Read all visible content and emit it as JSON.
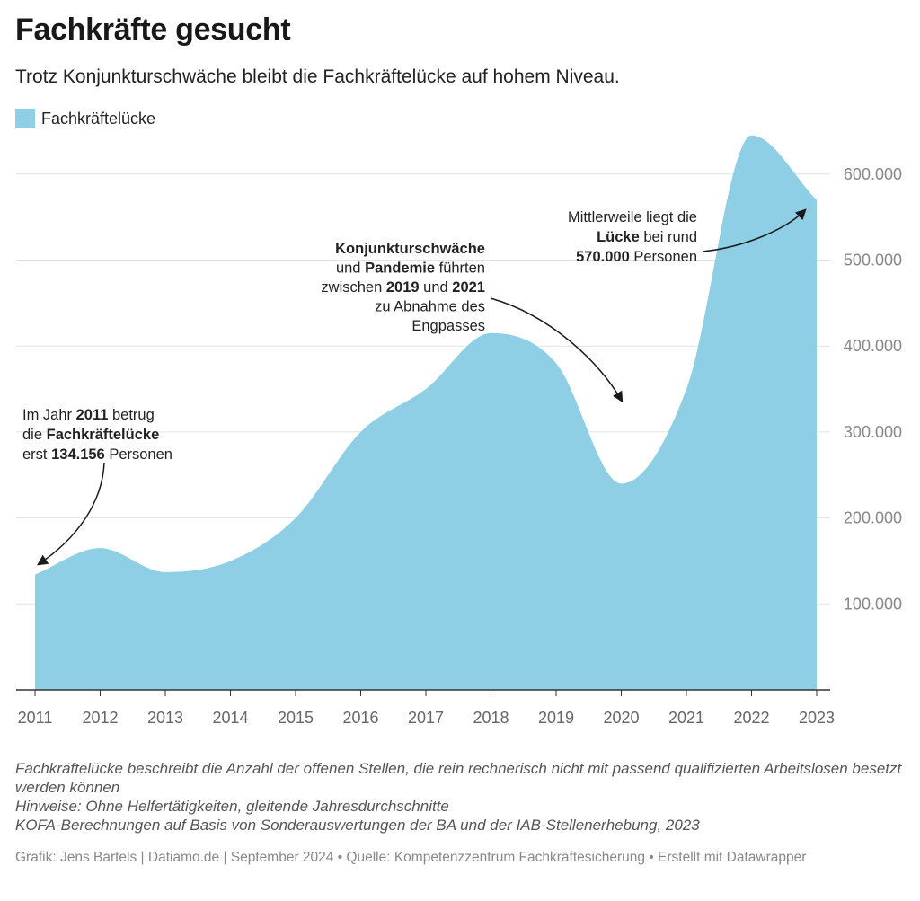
{
  "header": {
    "title": "Fachkräfte gesucht",
    "subtitle": "Trotz Konjunkturschwäche bleibt die Fachkräftelücke auf hohem Niveau."
  },
  "legend": {
    "label": "Fachkräftelücke",
    "color": "#8ecfe6"
  },
  "chart_data": {
    "type": "area",
    "title": "Fachkräfte gesucht",
    "subtitle": "Trotz Konjunkturschwäche bleibt die Fachkräftelücke auf hohem Niveau.",
    "x": [
      2011,
      2012,
      2013,
      2014,
      2015,
      2016,
      2017,
      2018,
      2019,
      2020,
      2021,
      2022,
      2023
    ],
    "series": [
      {
        "name": "Fachkräftelücke",
        "color": "#8ecfe6",
        "values": [
          134156,
          165000,
          137000,
          150000,
          200000,
          300000,
          350000,
          415000,
          380000,
          240000,
          350000,
          645000,
          570000
        ]
      }
    ],
    "ylim": [
      0,
      650000
    ],
    "yticks": [
      100000,
      200000,
      300000,
      400000,
      500000,
      600000
    ],
    "ytick_labels": [
      "100.000",
      "200.000",
      "300.000",
      "400.000",
      "500.000",
      "600.000"
    ],
    "xtick_labels": [
      "2011",
      "2012",
      "2013",
      "2014",
      "2015",
      "2016",
      "2017",
      "2018",
      "2019",
      "2020",
      "2021",
      "2022",
      "2023"
    ],
    "grid": true,
    "y_axis_side": "right",
    "annotations": [
      {
        "lines": [
          [
            [
              "Im Jahr ",
              false
            ],
            [
              "2011",
              true
            ],
            [
              " betrug",
              false
            ]
          ],
          [
            [
              "die ",
              false
            ],
            [
              "Fachkräftelücke",
              true
            ]
          ],
          [
            [
              "erst ",
              false
            ],
            [
              "134.156",
              true
            ],
            [
              " Personen",
              false
            ]
          ]
        ],
        "anchor": "start",
        "points_to": [
          2011,
          134156
        ]
      },
      {
        "lines": [
          [
            [
              "Konjunkturschwäche",
              true
            ]
          ],
          [
            [
              "und ",
              false
            ],
            [
              "Pandemie",
              true
            ],
            [
              " führten",
              false
            ]
          ],
          [
            [
              "zwischen ",
              false
            ],
            [
              "2019",
              true
            ],
            [
              " und ",
              false
            ],
            [
              "2021",
              true
            ]
          ],
          [
            [
              "zu Abnahme des",
              false
            ]
          ],
          [
            [
              "Engpasses",
              false
            ]
          ]
        ],
        "anchor": "end",
        "points_to": [
          2020,
          330000
        ]
      },
      {
        "lines": [
          [
            [
              "Mittlerweile liegt die",
              false
            ]
          ],
          [
            [
              "Lücke",
              true
            ],
            [
              " bei rund",
              false
            ]
          ],
          [
            [
              "570.000",
              true
            ],
            [
              " Personen",
              false
            ]
          ]
        ],
        "anchor": "end",
        "points_to": [
          2023,
          560000
        ]
      }
    ]
  },
  "notes": [
    "Fachkräftelücke beschreibt die Anzahl der offenen Stellen, die rein rechnerisch nicht mit passend qualifizierten Arbeitslosen besetzt werden können",
    "Hinweise: Ohne Helfertätigkeiten, gleitende Jahresdurchschnitte",
    "KOFA-Berechnungen auf Basis von Sonderauswertungen der BA und der IAB-Stellenerhebung, 2023"
  ],
  "footer": "Grafik: Jens Bartels | Datiamo.de | September 2024 • Quelle: Kompetenzzentrum Fachkräftesicherung • Erstellt mit Datawrapper"
}
